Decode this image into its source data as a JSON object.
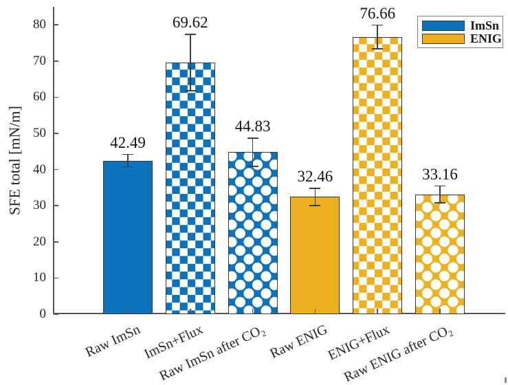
{
  "chart_data": {
    "type": "bar",
    "title": "",
    "xlabel": "",
    "ylabel": "SFE total [mN/m]",
    "ylim": [
      0,
      85
    ],
    "yticks": [
      0,
      10,
      20,
      30,
      40,
      50,
      60,
      70,
      80
    ],
    "grid": false,
    "legend": {
      "position": "northeast",
      "entries": [
        {
          "label": "ImSn",
          "color": "#0d72bc"
        },
        {
          "label": "ENIG",
          "color": "#edb120"
        }
      ]
    },
    "series_colors": {
      "ImSn": "#0d72bc",
      "ENIG": "#edb120"
    },
    "categories": [
      "Raw ImSn",
      "ImSn+Flux",
      "Raw ImSn after CO₂",
      "Raw ENIG",
      "ENIG+Flux",
      "Raw ENIG after CO₂"
    ],
    "bars": [
      {
        "category": "Raw ImSn",
        "series": "ImSn",
        "value": 42.49,
        "error": 1.7,
        "pattern": "solid",
        "value_label": "42.49"
      },
      {
        "category": "ImSn+Flux",
        "series": "ImSn",
        "value": 69.62,
        "error": 7.8,
        "pattern": "checker",
        "value_label": "69.62"
      },
      {
        "category": "Raw ImSn after CO₂",
        "series": "ImSn",
        "value": 44.83,
        "error": 3.9,
        "pattern": "dots",
        "value_label": "44.83"
      },
      {
        "category": "Raw ENIG",
        "series": "ENIG",
        "value": 32.46,
        "error": 2.4,
        "pattern": "solid",
        "value_label": "32.46"
      },
      {
        "category": "ENIG+Flux",
        "series": "ENIG",
        "value": 76.66,
        "error": 3.3,
        "pattern": "checker",
        "value_label": "76.66"
      },
      {
        "category": "Raw ENIG after CO₂",
        "series": "ENIG",
        "value": 33.16,
        "error": 2.3,
        "pattern": "dots",
        "value_label": "33.16"
      }
    ]
  }
}
